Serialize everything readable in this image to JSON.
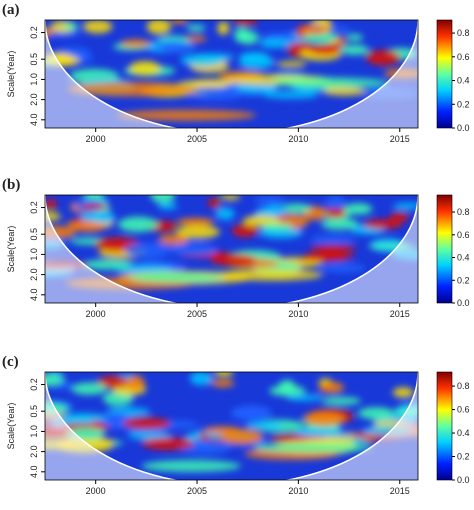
{
  "chart_data": [
    {
      "type": "wavelet",
      "title": "(a)",
      "y_label": "Scale(Year)",
      "y_log": true,
      "y_reversed": true,
      "xlim": [
        1997.5,
        2015.9
      ],
      "xticks": [
        2000,
        2005,
        2010,
        2015
      ],
      "ylim": [
        0.13,
        5.3
      ],
      "yticks": [
        0.2,
        0.5,
        {
          "value": 1,
          "label": "1.0"
        },
        {
          "value": 2,
          "label": "2.0"
        },
        {
          "value": 4,
          "label": "4.0"
        }
      ],
      "clim": [
        0,
        0.91
      ],
      "cticks": [
        {
          "value": 0,
          "label": "0.0"
        },
        0.2,
        0.4,
        0.6,
        0.8
      ]
    },
    {
      "type": "wavelet",
      "title": "(b)",
      "y_label": "Scale(Year)",
      "y_log": true,
      "y_reversed": true,
      "xlim": [
        1997.5,
        2015.9
      ],
      "xticks": [
        2000,
        2005,
        2010,
        2015
      ],
      "ylim": [
        0.13,
        5.3
      ],
      "yticks": [
        0.2,
        0.5,
        {
          "value": 1,
          "label": "1.0"
        },
        {
          "value": 2,
          "label": "2.0"
        },
        {
          "value": 4,
          "label": "4.0"
        }
      ],
      "clim": [
        0,
        0.95
      ],
      "cticks": [
        {
          "value": 0,
          "label": "0.0"
        },
        0.2,
        0.4,
        0.6,
        0.8
      ]
    },
    {
      "type": "wavelet",
      "title": "(c)",
      "y_label": "Scale(Year)",
      "y_log": true,
      "y_reversed": true,
      "xlim": [
        1997.5,
        2015.9
      ],
      "xticks": [
        2000,
        2005,
        2010,
        2015
      ],
      "ylim": [
        0.13,
        5.3
      ],
      "yticks": [
        0.2,
        0.5,
        {
          "value": 1,
          "label": "1.0"
        },
        {
          "value": 2,
          "label": "2.0"
        },
        {
          "value": 4,
          "label": "4.0"
        }
      ],
      "clim": [
        0,
        0.92
      ],
      "cticks": [
        {
          "value": 0,
          "label": "0.0"
        },
        0.2,
        0.4,
        0.6,
        0.8
      ]
    }
  ]
}
